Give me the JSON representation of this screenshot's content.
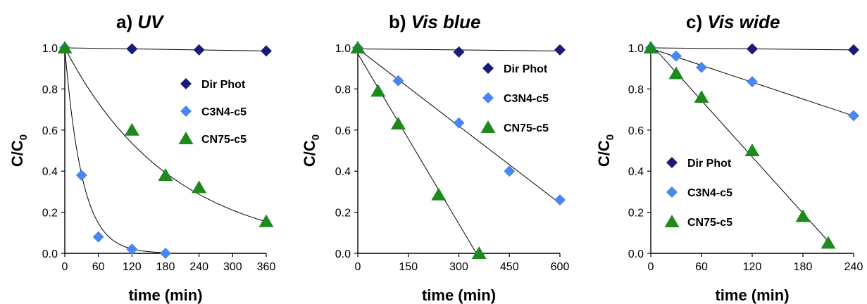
{
  "colors": {
    "dir_phot": "#1a1a7a",
    "c3n4": "#4a86f0",
    "cn75": "#1e8a1e",
    "line": "#000000"
  },
  "chart_data": [
    {
      "type": "scatter",
      "title_letter": "a)",
      "title": "UV",
      "xlabel": "time (min)",
      "ylabel": "C/C",
      "ylabel_sub": "0",
      "xlim": [
        0,
        360
      ],
      "ylim": [
        0,
        1.0
      ],
      "xticks": [
        0,
        60,
        120,
        180,
        240,
        300,
        360
      ],
      "yticks": [
        "0.0",
        "0.2",
        "0.4",
        "0.6",
        "0.8",
        "1.0"
      ],
      "legend_position": "right",
      "series": [
        {
          "name": "Dir Phot",
          "marker": "diamond",
          "color_key": "dir_phot",
          "x": [
            0,
            120,
            240,
            360
          ],
          "y": [
            1.0,
            0.995,
            0.99,
            0.985
          ],
          "fit": "linear"
        },
        {
          "name": "C3N4-c5",
          "marker": "diamond",
          "color_key": "c3n4",
          "x": [
            0,
            30,
            60,
            120,
            180
          ],
          "y": [
            1.0,
            0.38,
            0.08,
            0.02,
            0.0
          ],
          "fit": "exp",
          "k": 0.032
        },
        {
          "name": "CN75-c5",
          "marker": "triangle",
          "color_key": "cn75",
          "x": [
            0,
            120,
            180,
            240,
            360
          ],
          "y": [
            1.0,
            0.6,
            0.38,
            0.32,
            0.155
          ],
          "fit": "exp",
          "k": 0.0052
        }
      ]
    },
    {
      "type": "scatter",
      "title_letter": "b)",
      "title": "Vis blue",
      "xlabel": "time (min)",
      "ylabel": "C/C",
      "ylabel_sub": "0",
      "xlim": [
        0,
        600
      ],
      "ylim": [
        0,
        1.0
      ],
      "xticks": [
        0,
        150,
        300,
        450,
        600
      ],
      "yticks": [
        "0.0",
        "0.2",
        "0.4",
        "0.6",
        "0.8",
        "1.0"
      ],
      "legend_position": "top-right",
      "series": [
        {
          "name": "Dir Phot",
          "marker": "diamond",
          "color_key": "dir_phot",
          "x": [
            0,
            300,
            600
          ],
          "y": [
            1.0,
            0.98,
            0.99
          ],
          "fit": "linear"
        },
        {
          "name": "C3N4-c5",
          "marker": "diamond",
          "color_key": "c3n4",
          "x": [
            0,
            120,
            300,
            450,
            600
          ],
          "y": [
            1.0,
            0.84,
            0.635,
            0.4,
            0.26
          ],
          "fit": "linear"
        },
        {
          "name": "CN75-c5",
          "marker": "triangle",
          "color_key": "cn75",
          "x": [
            0,
            60,
            120,
            240,
            360
          ],
          "y": [
            1.0,
            0.79,
            0.63,
            0.285,
            0.0
          ],
          "fit": "linear"
        }
      ]
    },
    {
      "type": "scatter",
      "title_letter": "c)",
      "title": "Vis wide",
      "xlabel": "time (min)",
      "ylabel": "C/C",
      "ylabel_sub": "0",
      "xlim": [
        0,
        240
      ],
      "ylim": [
        0,
        1.0
      ],
      "xticks": [
        0,
        60,
        120,
        180,
        240
      ],
      "yticks": [
        "0.0",
        "0.2",
        "0.4",
        "0.6",
        "0.8",
        "1.0"
      ],
      "legend_position": "bottom-left",
      "series": [
        {
          "name": "Dir Phot",
          "marker": "diamond",
          "color_key": "dir_phot",
          "x": [
            0,
            120,
            240
          ],
          "y": [
            1.0,
            0.995,
            0.99
          ],
          "fit": "linear"
        },
        {
          "name": "C3N4-c5",
          "marker": "diamond",
          "color_key": "c3n4",
          "x": [
            0,
            30,
            60,
            120,
            240
          ],
          "y": [
            1.0,
            0.96,
            0.905,
            0.835,
            0.67
          ],
          "fit": "linear"
        },
        {
          "name": "CN75-c5",
          "marker": "triangle",
          "color_key": "cn75",
          "x": [
            0,
            30,
            60,
            120,
            180,
            210
          ],
          "y": [
            1.0,
            0.875,
            0.76,
            0.5,
            0.18,
            0.05
          ],
          "fit": "linear"
        }
      ]
    }
  ]
}
